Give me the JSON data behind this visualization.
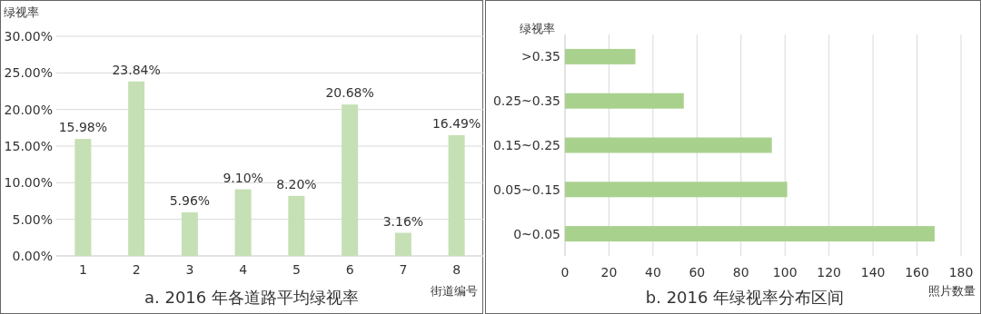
{
  "chart_data": [
    {
      "type": "bar",
      "title": "a. 2016 年各道路平均绿视率",
      "xlabel": "街道编号",
      "ylabel": "绿视率",
      "categories": [
        "1",
        "2",
        "3",
        "4",
        "5",
        "6",
        "7",
        "8"
      ],
      "values": [
        15.98,
        23.84,
        5.96,
        9.1,
        8.2,
        20.68,
        3.16,
        16.49
      ],
      "value_labels": [
        "15.98%",
        "23.84%",
        "5.96%",
        "9.10%",
        "8.20%",
        "20.68%",
        "3.16%",
        "16.49%"
      ],
      "color": "#c5e0b4",
      "ylim": [
        0,
        30
      ],
      "yticks": [
        {
          "value": 0,
          "label": "0.00%"
        },
        {
          "value": 5,
          "label": "5.00%"
        },
        {
          "value": 10,
          "label": "10.00%"
        },
        {
          "value": 15,
          "label": "15.00%"
        },
        {
          "value": 20,
          "label": "20.00%"
        },
        {
          "value": 25,
          "label": "25.00%"
        },
        {
          "value": 30,
          "label": "30.00%"
        }
      ],
      "grid": "y"
    },
    {
      "type": "bar",
      "orientation": "horizontal",
      "title": "b. 2016 年绿视率分布区间",
      "xlabel": "照片数量",
      "ylabel": "绿视率",
      "categories": [
        ">0.35",
        "0.25~0.35",
        "0.15~0.25",
        "0.05~0.15",
        "0~0.05"
      ],
      "values": [
        32,
        54,
        94,
        101,
        168
      ],
      "color": "#a9d18e",
      "xlim": [
        0,
        180
      ],
      "xticks": [
        0,
        20,
        40,
        60,
        80,
        100,
        120,
        140,
        160,
        180
      ],
      "grid": "x"
    }
  ]
}
